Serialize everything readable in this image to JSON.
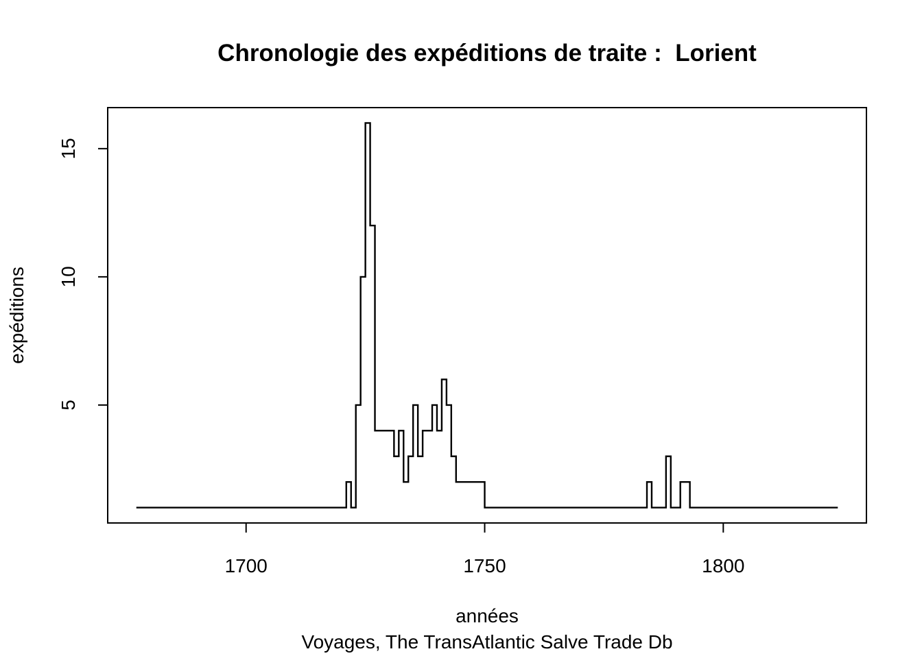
{
  "chart_data": {
    "type": "line",
    "step": true,
    "title": "Chronologie des expéditions de traite :  Lorient",
    "xlabel": "années",
    "ylabel": "expéditions",
    "subtitle": "Voyages, The TransAtlantic Salve Trade Db",
    "xlim": [
      1671,
      1830
    ],
    "ylim": [
      0.4,
      16.6
    ],
    "x_ticks": [
      1700,
      1750,
      1800
    ],
    "y_ticks": [
      5,
      10,
      15
    ],
    "grid": false,
    "line_color": "#000000",
    "series": [
      {
        "x": [
          1677,
          1721,
          1722,
          1723,
          1724,
          1725,
          1726,
          1727,
          1731,
          1732,
          1733,
          1734,
          1735,
          1736,
          1737,
          1739,
          1740,
          1741,
          1742,
          1743,
          1744,
          1745,
          1750,
          1784,
          1785,
          1788,
          1789,
          1791,
          1793,
          1824
        ],
        "y": [
          1,
          2,
          1,
          5,
          10,
          16,
          12,
          4,
          3,
          4,
          2,
          3,
          5,
          3,
          4,
          5,
          4,
          6,
          5,
          3,
          2,
          2,
          1,
          2,
          1,
          3,
          1,
          2,
          1,
          1
        ]
      }
    ]
  }
}
